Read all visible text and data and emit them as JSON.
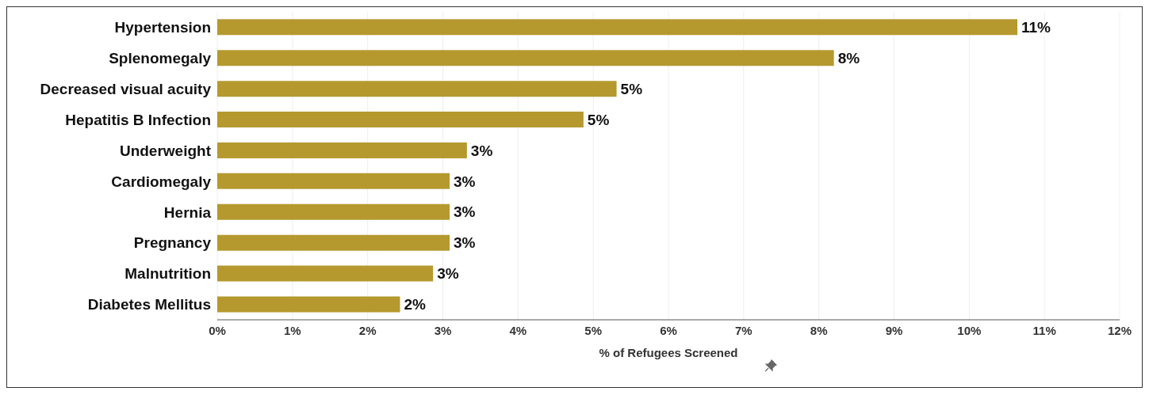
{
  "chart_data": {
    "type": "bar",
    "orientation": "horizontal",
    "xlabel": "% of Refugees Screened",
    "categories": [
      "Hypertension",
      "Splenomegaly",
      "Decreased visual acuity",
      "Hepatitis B Infection",
      "Underweight",
      "Cardiomegaly",
      "Hernia",
      "Pregnancy",
      "Malnutrition",
      "Diabetes Mellitus"
    ],
    "values": [
      10.64,
      8.2,
      5.31,
      4.87,
      3.32,
      3.09,
      3.09,
      3.09,
      2.87,
      2.43
    ],
    "value_labels": [
      "11%",
      "8%",
      "5%",
      "5%",
      "3%",
      "3%",
      "3%",
      "3%",
      "3%",
      "2%"
    ],
    "color": "#b5992f",
    "xlim": [
      0,
      12
    ],
    "xticks": [
      {
        "value": 0,
        "label": "0%"
      },
      {
        "value": 1,
        "label": "1%"
      },
      {
        "value": 2,
        "label": "2%"
      },
      {
        "value": 3,
        "label": "3%"
      },
      {
        "value": 4,
        "label": "4%"
      },
      {
        "value": 5,
        "label": "5%"
      },
      {
        "value": 6,
        "label": "6%"
      },
      {
        "value": 7,
        "label": "7%"
      },
      {
        "value": 8,
        "label": "8%"
      },
      {
        "value": 9,
        "label": "9%"
      },
      {
        "value": 10,
        "label": "10%"
      },
      {
        "value": 11,
        "label": "11%"
      },
      {
        "value": 12,
        "label": "12%"
      }
    ],
    "grid": "x"
  }
}
